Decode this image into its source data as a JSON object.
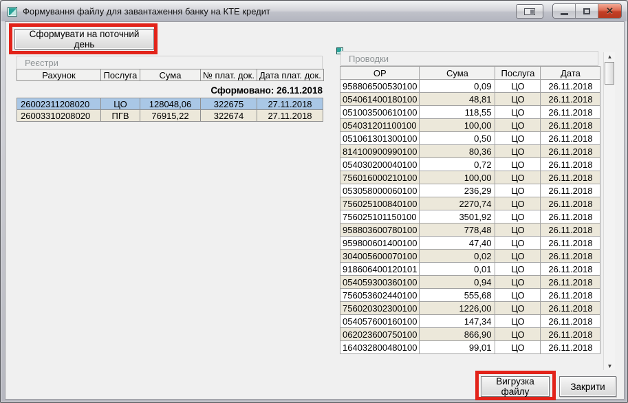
{
  "window": {
    "title": "Формування файлу для завантаження банку на КТЕ кредит"
  },
  "icons": {
    "close_glyph": "✕",
    "scroll_up_glyph": "▲",
    "scroll_down_glyph": "▼"
  },
  "toolbar": {
    "generate_label": "Сформувати на поточний день"
  },
  "registries": {
    "group_label": "Реєстри",
    "columns": [
      "Рахунок",
      "Послуга",
      "Сума",
      "№ плат. док.",
      "Дата плат. док."
    ],
    "formed_label": "Сформовано: 26.11.2018",
    "rows": [
      {
        "cells": [
          "26002311208020",
          "ЦО",
          "128048,06",
          "322675",
          "27.11.2018"
        ],
        "selected": true
      },
      {
        "cells": [
          "26003310208020",
          "ПГВ",
          "76915,22",
          "322674",
          "27.11.2018"
        ],
        "selected": false
      }
    ]
  },
  "transactions": {
    "group_label": "Проводки",
    "columns": [
      "ОР",
      "Сума",
      "Послуга",
      "Дата"
    ],
    "rows": [
      [
        "958806500530100",
        "0,09",
        "ЦО",
        "26.11.2018"
      ],
      [
        "054061400180100",
        "48,81",
        "ЦО",
        "26.11.2018"
      ],
      [
        "051003500610100",
        "118,55",
        "ЦО",
        "26.11.2018"
      ],
      [
        "054031201100100",
        "100,00",
        "ЦО",
        "26.11.2018"
      ],
      [
        "051061301300100",
        "0,50",
        "ЦО",
        "26.11.2018"
      ],
      [
        "814100900990100",
        "80,36",
        "ЦО",
        "26.11.2018"
      ],
      [
        "054030200040100",
        "0,72",
        "ЦО",
        "26.11.2018"
      ],
      [
        "756016000210100",
        "100,00",
        "ЦО",
        "26.11.2018"
      ],
      [
        "053058000060100",
        "236,29",
        "ЦО",
        "26.11.2018"
      ],
      [
        "756025100840100",
        "2270,74",
        "ЦО",
        "26.11.2018"
      ],
      [
        "756025101150100",
        "3501,92",
        "ЦО",
        "26.11.2018"
      ],
      [
        "958803600780100",
        "778,48",
        "ЦО",
        "26.11.2018"
      ],
      [
        "959800601400100",
        "47,40",
        "ЦО",
        "26.11.2018"
      ],
      [
        "304005600070100",
        "0,02",
        "ЦО",
        "26.11.2018"
      ],
      [
        "918606400120101",
        "0,01",
        "ЦО",
        "26.11.2018"
      ],
      [
        "054059300360100",
        "0,94",
        "ЦО",
        "26.11.2018"
      ],
      [
        "756053602440100",
        "555,68",
        "ЦО",
        "26.11.2018"
      ],
      [
        "756020302300100",
        "1226,00",
        "ЦО",
        "26.11.2018"
      ],
      [
        "054057600160100",
        "147,34",
        "ЦО",
        "26.11.2018"
      ],
      [
        "062023600750100",
        "866,90",
        "ЦО",
        "26.11.2018"
      ],
      [
        "164032800480100",
        "99,01",
        "ЦО",
        "26.11.2018"
      ]
    ]
  },
  "footer": {
    "export_label": "Вигрузка файлу",
    "close_label": "Закрити"
  },
  "colors": {
    "selection_blue": "#a9c7e6",
    "alt_row_beige": "#ece8da",
    "annotation_red": "#e2231a",
    "close_button_red": "#c33f27",
    "app_icon_teal": "#2aa49a"
  }
}
